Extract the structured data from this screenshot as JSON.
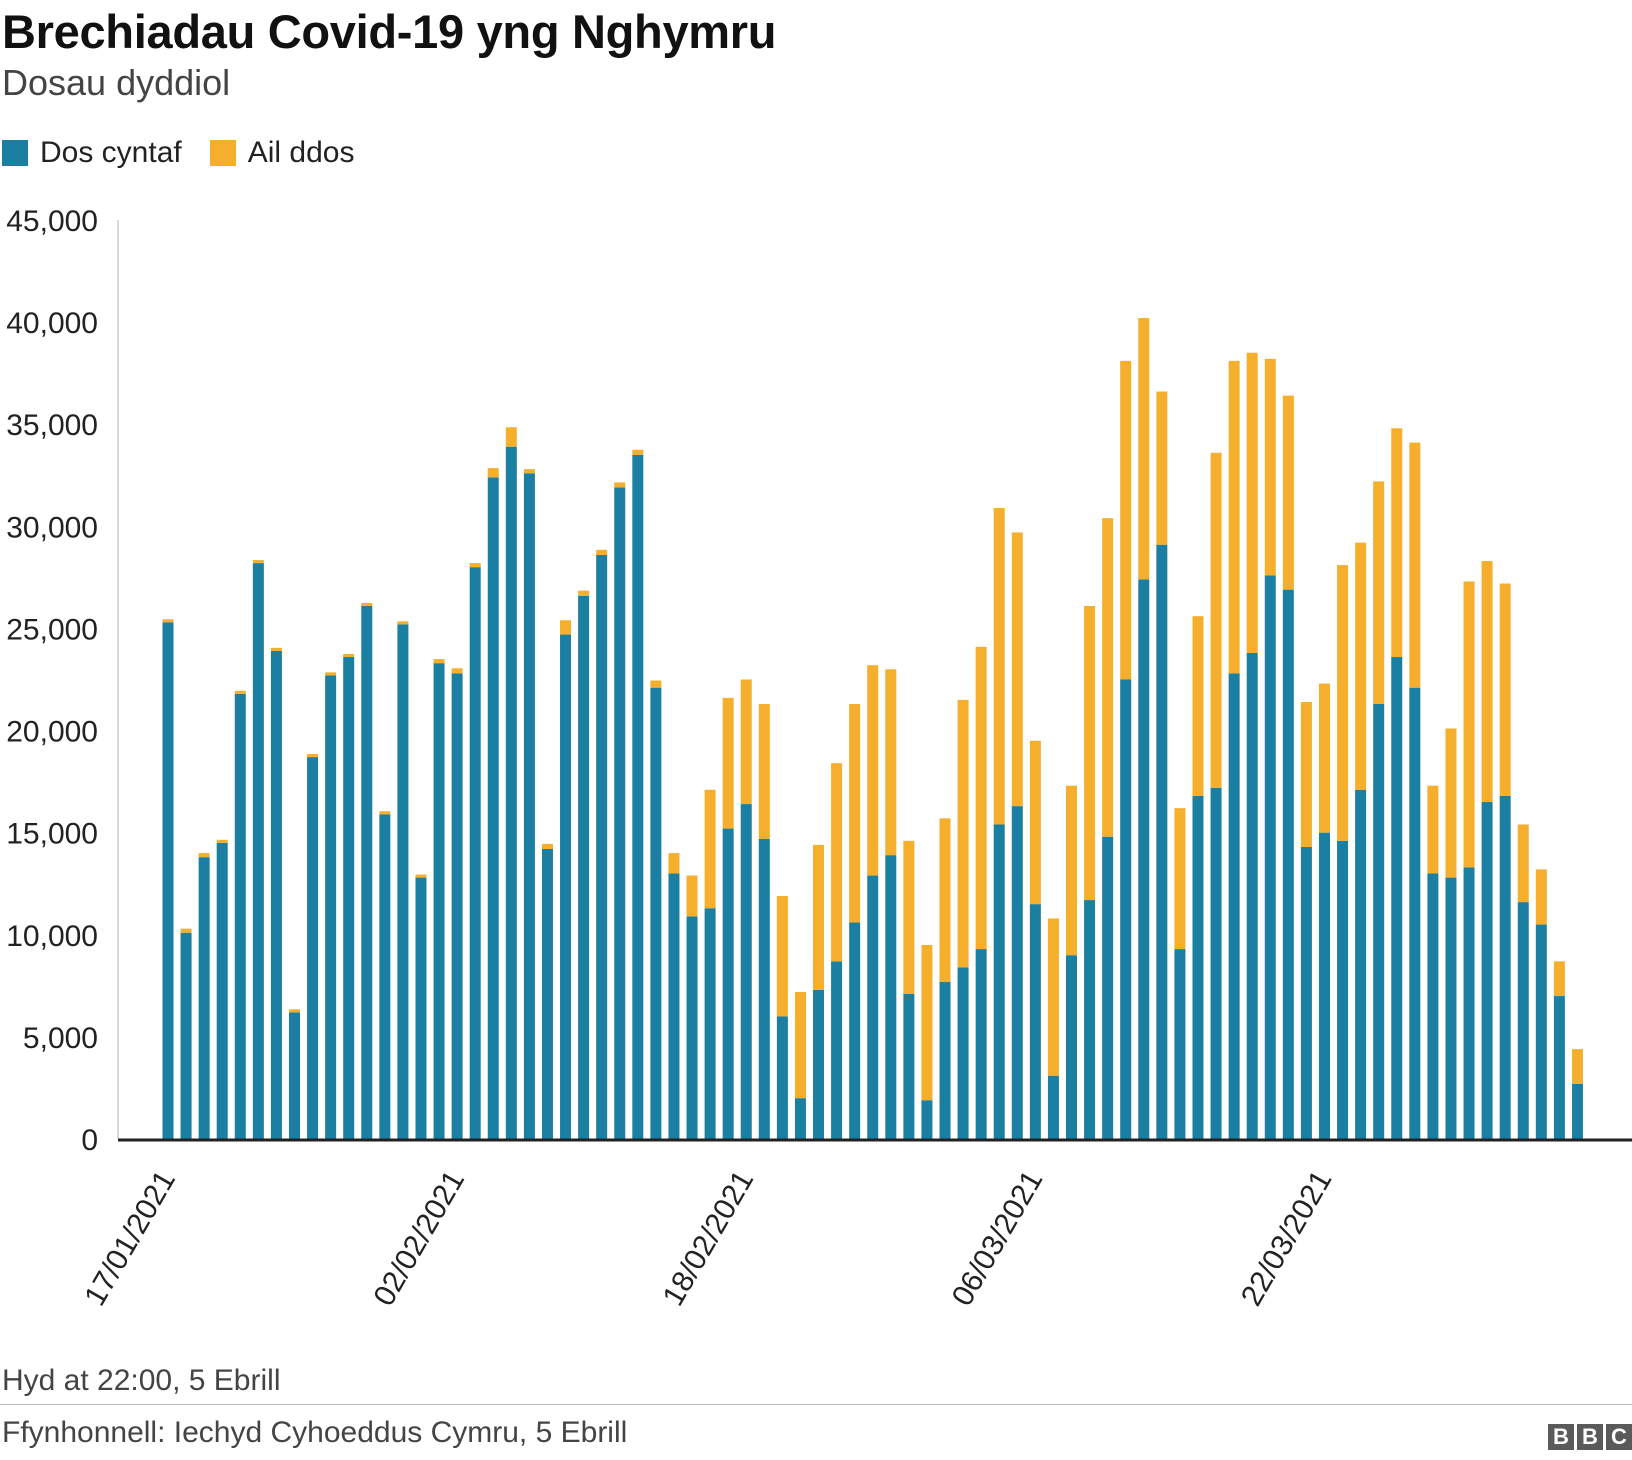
{
  "header": {
    "title": "Brechiadau Covid-19 yng Nghymru",
    "subtitle": "Dosau dyddiol"
  },
  "legend": [
    {
      "label": "Dos cyntaf",
      "color": "#1a7fa0"
    },
    {
      "label": "Ail ddos",
      "color": "#f6ae2d"
    }
  ],
  "footer": {
    "note": "Hyd at 22:00, 5 Ebrill",
    "source": "Ffynhonnell: Iechyd Cyhoeddus Cymru, 5 Ebrill",
    "logo": [
      "B",
      "B",
      "C"
    ]
  },
  "chart_data": {
    "type": "bar",
    "stacked": true,
    "x_start": "17/01/2021",
    "x_tick_labels": [
      "17/01/2021",
      "02/02/2021",
      "18/02/2021",
      "06/03/2021",
      "22/03/2021"
    ],
    "y_ticks": [
      "0",
      "5,000",
      "10,000",
      "15,000",
      "20,000",
      "25,000",
      "30,000",
      "35,000",
      "40,000",
      "45,000"
    ],
    "ylim": [
      0,
      45000
    ],
    "xlabel": "",
    "ylabel": "",
    "series": [
      {
        "name": "Dos cyntaf",
        "color": "#1a7fa0",
        "values": [
          25300,
          10100,
          13800,
          14500,
          21800,
          28200,
          23900,
          6200,
          18700,
          22700,
          23600,
          26100,
          15900,
          25200,
          12800,
          23300,
          22800,
          28000,
          32400,
          33900,
          32600,
          14200,
          24700,
          26600,
          28600,
          31900,
          33500,
          22100,
          13000,
          10900,
          11300,
          15200,
          16400,
          14700,
          6000,
          2000,
          7300,
          8700,
          10600,
          12900,
          13900,
          7100,
          1900,
          7700,
          8400,
          9300,
          15400,
          16300,
          11500,
          3100,
          9000,
          11700,
          14800,
          22500,
          27400,
          29100,
          9300,
          16800,
          17200,
          22800,
          23800,
          27600,
          26900,
          14300,
          15000,
          14600,
          17100,
          21300,
          23600,
          22100,
          13000,
          12800,
          13300,
          16500,
          16800,
          11600,
          10500,
          7000,
          2700
        ]
      },
      {
        "name": "Ail ddos",
        "color": "#f6ae2d",
        "values": [
          150,
          200,
          200,
          150,
          150,
          150,
          150,
          150,
          150,
          150,
          150,
          150,
          150,
          150,
          150,
          200,
          250,
          200,
          450,
          950,
          200,
          250,
          700,
          250,
          250,
          250,
          250,
          350,
          1000,
          2000,
          5800,
          6400,
          6100,
          6600,
          5900,
          5200,
          7100,
          9700,
          10700,
          10300,
          9100,
          7500,
          7600,
          8000,
          13100,
          14800,
          15500,
          13400,
          8000,
          7700,
          8300,
          14400,
          15600,
          15600,
          12800,
          7500,
          6900,
          8800,
          16400,
          15300,
          14700,
          10600,
          9500,
          7100,
          7300,
          13500,
          12100,
          10900,
          11200,
          12000,
          4300,
          7300,
          14000,
          11800,
          10400,
          3800,
          2700,
          1700,
          1700
        ]
      }
    ]
  }
}
